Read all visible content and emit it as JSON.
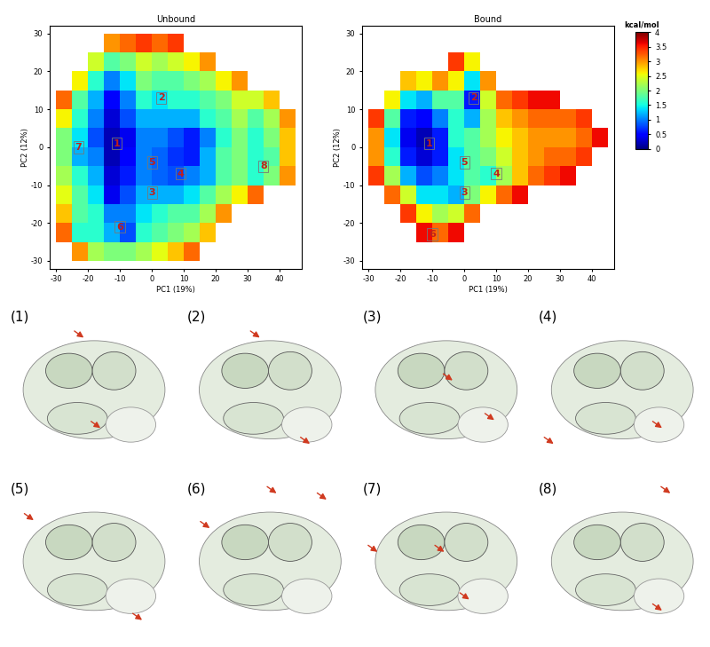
{
  "chart_data": [
    {
      "type": "heatmap",
      "title": "Unbound",
      "x_label": "PC1 (19%)",
      "y_label": "PC2 (12%)",
      "xlim": [
        -32,
        47
      ],
      "ylim": [
        -32,
        32
      ],
      "xticks": [
        -30,
        -20,
        -10,
        0,
        10,
        20,
        30,
        40
      ],
      "yticks": [
        -30,
        -20,
        -10,
        0,
        10,
        20,
        30
      ],
      "x_edges": [
        -30,
        -25,
        -20,
        -15,
        -10,
        -5,
        0,
        5,
        10,
        15,
        20,
        25,
        30,
        35,
        40,
        45
      ],
      "y_edges": [
        -30,
        -25,
        -20,
        -15,
        -10,
        -5,
        0,
        5,
        10,
        15,
        20,
        25,
        30
      ],
      "cells": [
        [
          null,
          3.0,
          2.2,
          2.0,
          2.0,
          2.2,
          2.5,
          2.8,
          3.2,
          null,
          null,
          null,
          null,
          null,
          null
        ],
        [
          3.2,
          1.6,
          1.6,
          1.2,
          0.8,
          1.6,
          1.8,
          2.0,
          2.2,
          2.8,
          null,
          null,
          null,
          null,
          null
        ],
        [
          2.8,
          1.8,
          1.6,
          1.0,
          1.0,
          1.4,
          1.6,
          1.8,
          1.8,
          2.2,
          3.0,
          null,
          null,
          null,
          null
        ],
        [
          2.5,
          1.8,
          1.4,
          0.4,
          0.8,
          1.2,
          1.2,
          1.2,
          1.4,
          1.8,
          2.2,
          2.6,
          3.2,
          null,
          null
        ],
        [
          2.2,
          1.6,
          1.2,
          0.3,
          0.6,
          1.0,
          0.9,
          0.8,
          1.0,
          1.2,
          1.8,
          2.0,
          1.6,
          2.0,
          3.0
        ],
        [
          2.0,
          1.2,
          1.0,
          0.2,
          0.5,
          1.0,
          0.9,
          0.7,
          0.6,
          1.2,
          1.8,
          2.0,
          1.6,
          1.8,
          2.8
        ],
        [
          2.0,
          1.4,
          0.8,
          0.2,
          0.4,
          1.0,
          1.0,
          0.8,
          0.6,
          1.0,
          1.6,
          2.0,
          1.6,
          2.0,
          2.8
        ],
        [
          2.6,
          1.6,
          1.0,
          0.3,
          0.8,
          1.2,
          1.2,
          1.2,
          1.2,
          1.6,
          1.8,
          2.2,
          1.8,
          2.2,
          3.0
        ],
        [
          3.2,
          1.8,
          1.2,
          0.5,
          1.0,
          1.6,
          1.4,
          1.6,
          1.6,
          1.8,
          2.0,
          2.4,
          2.4,
          2.8,
          null
        ],
        [
          null,
          2.6,
          1.6,
          1.0,
          1.4,
          2.0,
          1.8,
          1.8,
          2.0,
          2.2,
          2.6,
          3.0,
          null,
          null,
          null
        ],
        [
          null,
          null,
          2.4,
          1.8,
          2.0,
          2.4,
          2.2,
          2.4,
          2.6,
          3.0,
          null,
          null,
          null,
          null,
          null
        ],
        [
          null,
          null,
          null,
          3.0,
          3.2,
          3.4,
          3.2,
          3.4,
          null,
          null,
          null,
          null,
          null,
          null,
          null
        ]
      ],
      "states": [
        {
          "label": "1",
          "x": -11,
          "y": 1
        },
        {
          "label": "2",
          "x": 3,
          "y": 13
        },
        {
          "label": "3",
          "x": 0,
          "y": -12
        },
        {
          "label": "4",
          "x": 9,
          "y": -7
        },
        {
          "label": "5",
          "x": 0,
          "y": -4
        },
        {
          "label": "6",
          "x": -10,
          "y": -21
        },
        {
          "label": "7",
          "x": -23,
          "y": 0
        },
        {
          "label": "8",
          "x": 35,
          "y": -5
        }
      ]
    },
    {
      "type": "heatmap",
      "title": "Bound",
      "x_label": "PC1 (19%)",
      "y_label": "PC2 (12%)",
      "xlim": [
        -32,
        47
      ],
      "ylim": [
        -32,
        32
      ],
      "xticks": [
        -30,
        -20,
        -10,
        0,
        10,
        20,
        30,
        40
      ],
      "yticks": [
        -30,
        -20,
        -10,
        0,
        10,
        20,
        30
      ],
      "x_edges": [
        -30,
        -25,
        -20,
        -15,
        -10,
        -5,
        0,
        5,
        10,
        15,
        20,
        25,
        30,
        35,
        40,
        45
      ],
      "y_edges": [
        -30,
        -25,
        -20,
        -15,
        -10,
        -5,
        0,
        5,
        10,
        15,
        20,
        25,
        30
      ],
      "cells": [
        [
          null,
          null,
          null,
          null,
          null,
          null,
          null,
          null,
          null,
          null,
          null,
          null,
          null,
          null,
          null
        ],
        [
          null,
          null,
          null,
          3.6,
          3.2,
          3.6,
          null,
          null,
          null,
          null,
          null,
          null,
          null,
          null,
          null
        ],
        [
          null,
          null,
          3.4,
          2.6,
          2.2,
          2.4,
          3.2,
          null,
          null,
          null,
          null,
          null,
          null,
          null,
          null
        ],
        [
          null,
          3.2,
          2.4,
          1.4,
          1.4,
          1.2,
          2.0,
          2.6,
          3.2,
          3.6,
          null,
          null,
          null,
          null,
          null
        ],
        [
          3.4,
          2.2,
          1.2,
          0.8,
          1.0,
          1.4,
          1.8,
          1.6,
          2.2,
          2.8,
          3.2,
          3.4,
          3.6,
          null,
          null
        ],
        [
          3.0,
          1.6,
          0.6,
          0.3,
          0.6,
          1.4,
          1.8,
          2.0,
          2.4,
          2.8,
          3.0,
          3.2,
          3.2,
          3.4,
          null
        ],
        [
          3.0,
          1.4,
          0.4,
          0.2,
          0.6,
          1.6,
          1.8,
          2.2,
          2.6,
          2.8,
          3.0,
          3.0,
          3.0,
          3.2,
          3.6
        ],
        [
          3.4,
          1.8,
          0.6,
          0.5,
          1.0,
          1.6,
          1.2,
          2.2,
          2.8,
          3.0,
          3.2,
          3.2,
          3.2,
          3.4,
          null
        ],
        [
          null,
          2.6,
          1.4,
          1.2,
          1.8,
          1.8,
          0.6,
          2.4,
          3.2,
          3.4,
          3.6,
          3.6,
          null,
          null,
          null
        ],
        [
          null,
          null,
          2.8,
          2.6,
          3.0,
          2.6,
          1.4,
          3.0,
          null,
          null,
          null,
          null,
          null,
          null,
          null
        ],
        [
          null,
          null,
          null,
          null,
          null,
          3.4,
          2.6,
          null,
          null,
          null,
          null,
          null,
          null,
          null,
          null
        ],
        [
          null,
          null,
          null,
          null,
          null,
          null,
          null,
          null,
          null,
          null,
          null,
          null,
          null,
          null,
          null
        ]
      ],
      "states": [
        {
          "label": "1",
          "x": -11,
          "y": 1
        },
        {
          "label": "2",
          "x": 3,
          "y": 13
        },
        {
          "label": "3",
          "x": 0,
          "y": -12
        },
        {
          "label": "4",
          "x": 10,
          "y": -7
        },
        {
          "label": "5",
          "x": 0,
          "y": -4
        },
        {
          "label": "6",
          "x": -10,
          "y": -23
        }
      ]
    }
  ],
  "colorbar": {
    "label": "kcal/mol",
    "range": [
      0,
      4
    ],
    "ticks": [
      0,
      0.5,
      1,
      1.5,
      2,
      2.5,
      3,
      3.5,
      4
    ]
  },
  "structures": {
    "labels": [
      "(1)",
      "(2)",
      "(3)",
      "(4)",
      "(5)",
      "(6)",
      "(7)",
      "(8)"
    ]
  }
}
